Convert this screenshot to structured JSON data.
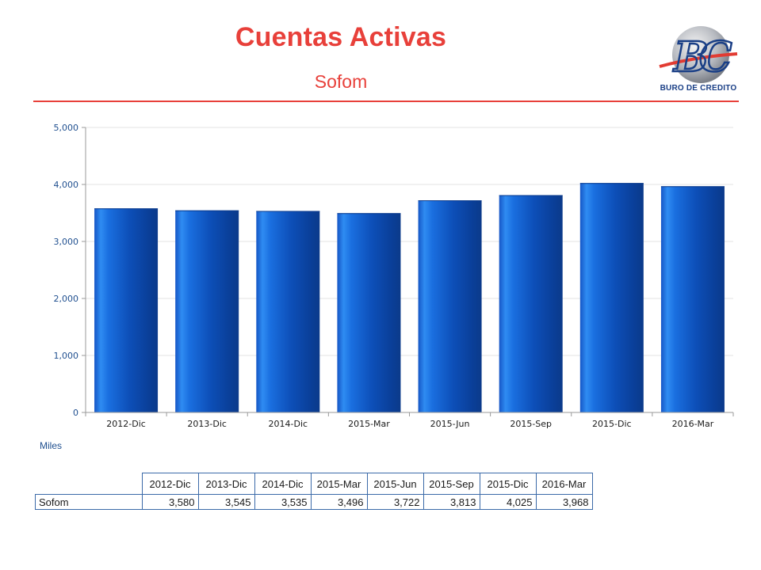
{
  "header": {
    "title": "Cuentas Activas",
    "subtitle": "Sofom",
    "logo_text": "BURO DE CREDITO"
  },
  "colors": {
    "title": "#e8403a",
    "bar": "#1f66d6",
    "table_border": "#3b6aa8"
  },
  "units_label": "Miles",
  "chart_data": {
    "type": "bar",
    "title": "Cuentas Activas",
    "subtitle": "Sofom",
    "categories": [
      "2012-Dic",
      "2013-Dic",
      "2014-Dic",
      "2015-Mar",
      "2015-Jun",
      "2015-Sep",
      "2015-Dic",
      "2016-Mar"
    ],
    "series": [
      {
        "name": "Sofom",
        "values": [
          3580,
          3545,
          3535,
          3496,
          3722,
          3813,
          4025,
          3968
        ]
      }
    ],
    "ylim": [
      0,
      5000
    ],
    "yticks": [
      0,
      1000,
      2000,
      3000,
      4000,
      5000
    ],
    "ytick_labels": [
      "0",
      "1,000",
      "2,000",
      "3,000",
      "4,000",
      "5,000"
    ],
    "ylabel": "Miles",
    "grid": true,
    "legend": "none"
  },
  "table": {
    "headers": [
      "2012-Dic",
      "2013-Dic",
      "2014-Dic",
      "2015-Mar",
      "2015-Jun",
      "2015-Sep",
      "2015-Dic",
      "2016-Mar"
    ],
    "row_label": "Sofom",
    "cells": [
      "3,580",
      "3,545",
      "3,535",
      "3,496",
      "3,722",
      "3,813",
      "4,025",
      "3,968"
    ]
  }
}
